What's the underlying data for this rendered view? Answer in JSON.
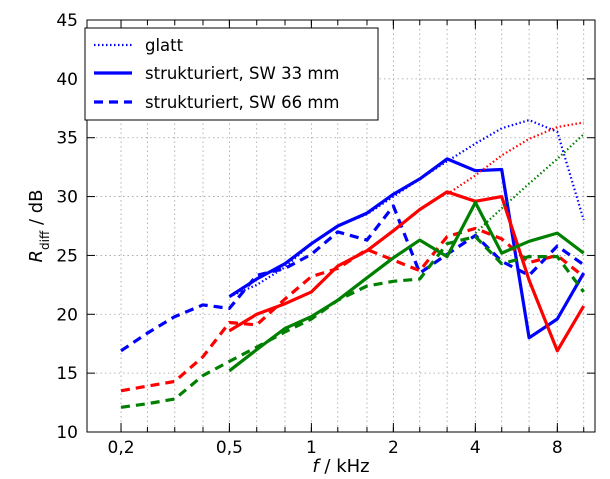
{
  "chart_data": {
    "type": "line",
    "xlabel_var": "f",
    "xlabel_unit": " / kHz",
    "ylabel_var": "R",
    "ylabel_sub": "diff",
    "ylabel_unit": " / dB",
    "xscale": "log",
    "xlim": [
      0.15,
      11.0
    ],
    "ylim": [
      10,
      45
    ],
    "xticks": [
      {
        "v": 0.2,
        "label": "0,2"
      },
      {
        "v": 0.5,
        "label": "0,5"
      },
      {
        "v": 1,
        "label": "1"
      },
      {
        "v": 2,
        "label": "2"
      },
      {
        "v": 4,
        "label": "4"
      },
      {
        "v": 8,
        "label": "8"
      }
    ],
    "xgrid": [
      0.2,
      0.25,
      0.315,
      0.4,
      0.5,
      0.63,
      0.8,
      1,
      1.25,
      1.6,
      2,
      2.5,
      3.15,
      4,
      5,
      6.3,
      8,
      10
    ],
    "yticks": [
      10,
      15,
      20,
      25,
      30,
      35,
      40,
      45
    ],
    "grid": true,
    "legend_position": "top-left",
    "legend": [
      {
        "label": "glatt",
        "style": "dotted",
        "color": "#0000ff"
      },
      {
        "label": "strukturiert, SW 33 mm",
        "style": "solid",
        "color": "#0000ff"
      },
      {
        "label": "strukturiert, SW 66 mm",
        "style": "dashed",
        "color": "#0000ff"
      }
    ],
    "series": [
      {
        "color": "#0000ff",
        "style": "dotted",
        "x": [
          0.5,
          0.63,
          0.8,
          1,
          1.25,
          1.6,
          2,
          2.5,
          3.15,
          4,
          5,
          6.3,
          8,
          10
        ],
        "y": [
          21.5,
          22.5,
          24.0,
          26.0,
          27.5,
          28.5,
          30.0,
          31.5,
          33.0,
          34.5,
          35.8,
          36.5,
          35.5,
          28.0
        ]
      },
      {
        "color": "#0000ff",
        "style": "solid",
        "x": [
          0.5,
          0.63,
          0.8,
          1,
          1.25,
          1.6,
          2,
          2.5,
          3.15,
          4,
          5,
          6.3,
          8,
          10
        ],
        "y": [
          21.5,
          23.0,
          24.3,
          26.0,
          27.5,
          28.6,
          30.2,
          31.5,
          33.2,
          32.2,
          32.3,
          18.0,
          19.6,
          23.5
        ]
      },
      {
        "color": "#0000ff",
        "style": "dashed",
        "x": [
          0.2,
          0.25,
          0.315,
          0.4,
          0.5,
          0.63,
          0.8,
          1,
          1.25,
          1.6,
          2,
          2.5,
          3.15,
          4,
          5,
          6.3,
          8,
          10
        ],
        "y": [
          16.9,
          18.4,
          19.8,
          20.8,
          20.5,
          23.3,
          23.9,
          25.1,
          27.0,
          26.3,
          29.2,
          23.5,
          25.1,
          26.7,
          24.5,
          23.3,
          25.8,
          24.2
        ]
      },
      {
        "color": "#ff0000",
        "style": "dotted",
        "x": [
          3.15,
          4,
          5,
          6.3,
          8,
          10
        ],
        "y": [
          30.2,
          31.8,
          33.5,
          34.9,
          35.9,
          36.3
        ]
      },
      {
        "color": "#ff0000",
        "style": "solid",
        "x": [
          0.5,
          0.63,
          0.8,
          1,
          1.25,
          1.6,
          2,
          2.5,
          3.15,
          4,
          5,
          6.3,
          8,
          10
        ],
        "y": [
          18.6,
          20.0,
          20.9,
          21.9,
          24.1,
          25.4,
          27.1,
          28.9,
          30.4,
          29.6,
          30.0,
          22.9,
          16.9,
          20.7
        ]
      },
      {
        "color": "#ff0000",
        "style": "dashed",
        "x": [
          0.2,
          0.25,
          0.315,
          0.4,
          0.5,
          0.63,
          0.8,
          1,
          1.25,
          1.6,
          2,
          2.5,
          3.15,
          4,
          5,
          6.3,
          8,
          10
        ],
        "y": [
          13.5,
          13.9,
          14.3,
          16.4,
          19.3,
          19.1,
          21.3,
          23.2,
          23.9,
          25.5,
          24.6,
          23.7,
          26.6,
          27.3,
          26.4,
          24.4,
          25.0,
          23.2
        ]
      },
      {
        "color": "#008000",
        "style": "dotted",
        "x": [
          4,
          5,
          6.3,
          8,
          10
        ],
        "y": [
          26.9,
          29.0,
          31.1,
          33.2,
          35.3
        ]
      },
      {
        "color": "#008000",
        "style": "solid",
        "x": [
          0.5,
          0.63,
          0.8,
          1,
          1.25,
          1.6,
          2,
          2.5,
          3.15,
          4,
          5,
          6.3,
          8,
          10
        ],
        "y": [
          15.2,
          17.0,
          18.8,
          19.8,
          21.2,
          23.1,
          24.8,
          26.3,
          24.9,
          29.5,
          25.2,
          26.2,
          26.9,
          25.2
        ]
      },
      {
        "color": "#008000",
        "style": "dashed",
        "x": [
          0.2,
          0.25,
          0.315,
          0.4,
          0.5,
          0.63,
          0.8,
          1,
          1.25,
          1.6,
          2,
          2.5,
          3.15,
          4,
          5,
          6.3,
          8,
          10
        ],
        "y": [
          12.1,
          12.4,
          12.8,
          14.8,
          16.0,
          17.2,
          18.5,
          19.6,
          21.2,
          22.4,
          22.8,
          23.0,
          26.0,
          26.6,
          24.3,
          24.9,
          24.9,
          21.9
        ]
      }
    ]
  }
}
